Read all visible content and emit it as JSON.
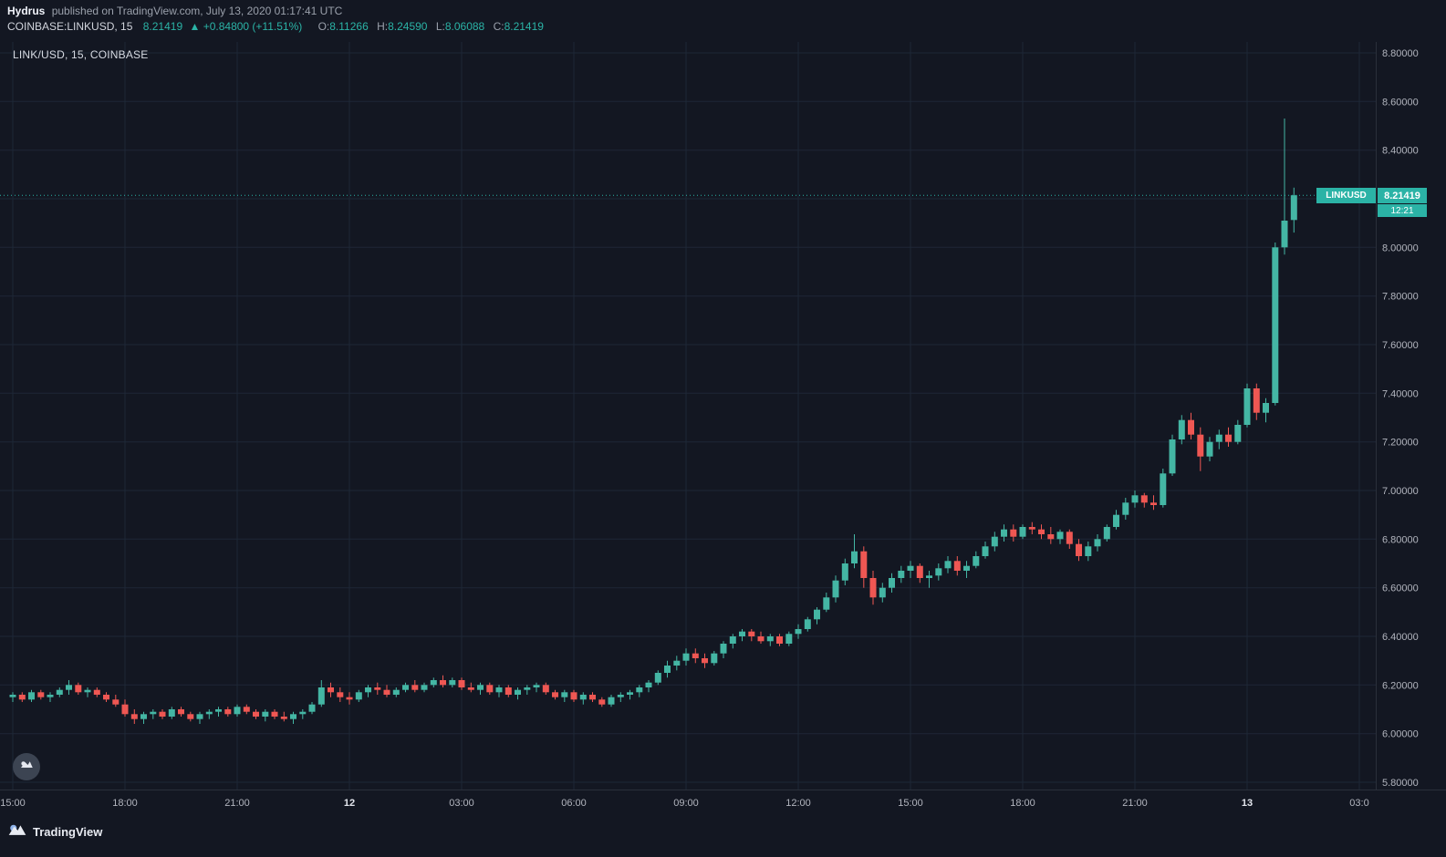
{
  "header": {
    "author": "Hydrus",
    "published_text": "published on TradingView.com, July 13, 2020 01:17:41 UTC",
    "symbol": "COINBASE:LINKUSD, 15",
    "last_price": "8.21419",
    "arrow": "▲",
    "change": "+0.84800 (+11.51%)",
    "ohlc": {
      "o_label": "O:",
      "o": "8.11266",
      "h_label": "H:",
      "h": "8.24590",
      "l_label": "L:",
      "l": "8.06088",
      "c_label": "C:",
      "c": "8.21419"
    }
  },
  "chart": {
    "legend": "LINK/USD, 15, COINBASE",
    "price_tag": {
      "symbol": "LINKUSD",
      "price": "8.21419",
      "countdown": "12:21"
    }
  },
  "footer": {
    "brand": "TradingView"
  },
  "colors": {
    "background": "#131722",
    "grid": "#1e2736",
    "axis_border": "#2a2f3a",
    "up": "#44b6a4",
    "down": "#ef5753",
    "accent": "#2bb3a6",
    "axis_text": "#b2b5be",
    "date_text": "#e3e6ed",
    "tag_text": "#ffffff"
  },
  "chart_data": {
    "type": "candlestick",
    "title": "LINK/USD, 15, COINBASE",
    "symbol": "LINKUSD",
    "exchange": "COINBASE",
    "interval_minutes": 15,
    "current_price": 8.21419,
    "price_axis": {
      "min": 5.77,
      "max": 8.845,
      "label_min": 5.8,
      "label_max": 8.8,
      "grid_step": 0.2,
      "hidden_label": 8.2,
      "decimals": 5
    },
    "time_labels": [
      {
        "index": 0,
        "label": "15:00",
        "date": false
      },
      {
        "index": 12,
        "label": "18:00",
        "date": false
      },
      {
        "index": 24,
        "label": "21:00",
        "date": false
      },
      {
        "index": 36,
        "label": "12",
        "date": true
      },
      {
        "index": 48,
        "label": "03:00",
        "date": false
      },
      {
        "index": 60,
        "label": "06:00",
        "date": false
      },
      {
        "index": 72,
        "label": "09:00",
        "date": false
      },
      {
        "index": 84,
        "label": "12:00",
        "date": false
      },
      {
        "index": 96,
        "label": "15:00",
        "date": false
      },
      {
        "index": 108,
        "label": "18:00",
        "date": false
      },
      {
        "index": 120,
        "label": "21:00",
        "date": false
      },
      {
        "index": 132,
        "label": "13",
        "date": true
      },
      {
        "index": 144,
        "label": "03:0",
        "date": false
      }
    ],
    "candles": [
      [
        6.15,
        6.17,
        6.13,
        6.16
      ],
      [
        6.16,
        6.17,
        6.13,
        6.14
      ],
      [
        6.14,
        6.18,
        6.13,
        6.17
      ],
      [
        6.17,
        6.18,
        6.14,
        6.15
      ],
      [
        6.15,
        6.17,
        6.13,
        6.16
      ],
      [
        6.16,
        6.19,
        6.15,
        6.18
      ],
      [
        6.18,
        6.22,
        6.16,
        6.2
      ],
      [
        6.2,
        6.21,
        6.16,
        6.17
      ],
      [
        6.17,
        6.19,
        6.15,
        6.18
      ],
      [
        6.18,
        6.19,
        6.15,
        6.16
      ],
      [
        6.16,
        6.17,
        6.13,
        6.14
      ],
      [
        6.14,
        6.16,
        6.11,
        6.12
      ],
      [
        6.12,
        6.14,
        6.07,
        6.08
      ],
      [
        6.08,
        6.1,
        6.04,
        6.06
      ],
      [
        6.06,
        6.09,
        6.04,
        6.08
      ],
      [
        6.08,
        6.1,
        6.06,
        6.09
      ],
      [
        6.09,
        6.1,
        6.06,
        6.07
      ],
      [
        6.07,
        6.11,
        6.06,
        6.1
      ],
      [
        6.1,
        6.11,
        6.07,
        6.08
      ],
      [
        6.08,
        6.09,
        6.05,
        6.06
      ],
      [
        6.06,
        6.09,
        6.04,
        6.08
      ],
      [
        6.08,
        6.1,
        6.06,
        6.09
      ],
      [
        6.09,
        6.11,
        6.07,
        6.1
      ],
      [
        6.1,
        6.11,
        6.07,
        6.08
      ],
      [
        6.08,
        6.12,
        6.07,
        6.11
      ],
      [
        6.11,
        6.12,
        6.08,
        6.09
      ],
      [
        6.09,
        6.1,
        6.06,
        6.07
      ],
      [
        6.07,
        6.1,
        6.05,
        6.09
      ],
      [
        6.09,
        6.1,
        6.06,
        6.07
      ],
      [
        6.07,
        6.09,
        6.05,
        6.06
      ],
      [
        6.06,
        6.09,
        6.04,
        6.08
      ],
      [
        6.08,
        6.1,
        6.06,
        6.09
      ],
      [
        6.09,
        6.13,
        6.08,
        6.12
      ],
      [
        6.12,
        6.22,
        6.11,
        6.19
      ],
      [
        6.19,
        6.21,
        6.15,
        6.17
      ],
      [
        6.17,
        6.19,
        6.13,
        6.15
      ],
      [
        6.15,
        6.17,
        6.12,
        6.14
      ],
      [
        6.14,
        6.18,
        6.13,
        6.17
      ],
      [
        6.17,
        6.2,
        6.15,
        6.19
      ],
      [
        6.19,
        6.21,
        6.16,
        6.18
      ],
      [
        6.18,
        6.2,
        6.15,
        6.16
      ],
      [
        6.16,
        6.19,
        6.15,
        6.18
      ],
      [
        6.18,
        6.21,
        6.17,
        6.2
      ],
      [
        6.2,
        6.22,
        6.17,
        6.18
      ],
      [
        6.18,
        6.21,
        6.17,
        6.2
      ],
      [
        6.2,
        6.23,
        6.19,
        6.22
      ],
      [
        6.22,
        6.24,
        6.19,
        6.2
      ],
      [
        6.2,
        6.23,
        6.19,
        6.22
      ],
      [
        6.22,
        6.23,
        6.18,
        6.19
      ],
      [
        6.19,
        6.21,
        6.17,
        6.18
      ],
      [
        6.18,
        6.21,
        6.16,
        6.2
      ],
      [
        6.2,
        6.21,
        6.16,
        6.17
      ],
      [
        6.17,
        6.2,
        6.15,
        6.19
      ],
      [
        6.19,
        6.2,
        6.15,
        6.16
      ],
      [
        6.16,
        6.19,
        6.14,
        6.18
      ],
      [
        6.18,
        6.2,
        6.16,
        6.19
      ],
      [
        6.19,
        6.21,
        6.17,
        6.2
      ],
      [
        6.2,
        6.21,
        6.16,
        6.17
      ],
      [
        6.17,
        6.18,
        6.14,
        6.15
      ],
      [
        6.15,
        6.18,
        6.13,
        6.17
      ],
      [
        6.17,
        6.18,
        6.13,
        6.14
      ],
      [
        6.14,
        6.17,
        6.12,
        6.16
      ],
      [
        6.16,
        6.17,
        6.13,
        6.14
      ],
      [
        6.14,
        6.15,
        6.11,
        6.12
      ],
      [
        6.12,
        6.16,
        6.11,
        6.15
      ],
      [
        6.15,
        6.17,
        6.13,
        6.16
      ],
      [
        6.16,
        6.18,
        6.14,
        6.17
      ],
      [
        6.17,
        6.2,
        6.15,
        6.19
      ],
      [
        6.19,
        6.22,
        6.17,
        6.21
      ],
      [
        6.21,
        6.26,
        6.2,
        6.25
      ],
      [
        6.25,
        6.3,
        6.23,
        6.28
      ],
      [
        6.28,
        6.32,
        6.26,
        6.3
      ],
      [
        6.3,
        6.35,
        6.28,
        6.33
      ],
      [
        6.33,
        6.35,
        6.29,
        6.31
      ],
      [
        6.31,
        6.33,
        6.27,
        6.29
      ],
      [
        6.29,
        6.34,
        6.28,
        6.33
      ],
      [
        6.33,
        6.38,
        6.31,
        6.37
      ],
      [
        6.37,
        6.41,
        6.35,
        6.4
      ],
      [
        6.4,
        6.43,
        6.38,
        6.42
      ],
      [
        6.42,
        6.43,
        6.38,
        6.4
      ],
      [
        6.4,
        6.42,
        6.37,
        6.38
      ],
      [
        6.38,
        6.41,
        6.36,
        6.4
      ],
      [
        6.4,
        6.41,
        6.36,
        6.37
      ],
      [
        6.37,
        6.42,
        6.36,
        6.41
      ],
      [
        6.41,
        6.45,
        6.39,
        6.43
      ],
      [
        6.43,
        6.48,
        6.42,
        6.47
      ],
      [
        6.47,
        6.52,
        6.45,
        6.51
      ],
      [
        6.51,
        6.58,
        6.5,
        6.56
      ],
      [
        6.56,
        6.65,
        6.54,
        6.63
      ],
      [
        6.63,
        6.72,
        6.61,
        6.7
      ],
      [
        6.7,
        6.82,
        6.68,
        6.75
      ],
      [
        6.75,
        6.77,
        6.6,
        6.64
      ],
      [
        6.64,
        6.67,
        6.53,
        6.56
      ],
      [
        6.56,
        6.62,
        6.54,
        6.6
      ],
      [
        6.6,
        6.66,
        6.58,
        6.64
      ],
      [
        6.64,
        6.69,
        6.62,
        6.67
      ],
      [
        6.67,
        6.71,
        6.64,
        6.69
      ],
      [
        6.69,
        6.7,
        6.62,
        6.64
      ],
      [
        6.64,
        6.67,
        6.6,
        6.65
      ],
      [
        6.65,
        6.7,
        6.63,
        6.68
      ],
      [
        6.68,
        6.73,
        6.66,
        6.71
      ],
      [
        6.71,
        6.73,
        6.65,
        6.67
      ],
      [
        6.67,
        6.71,
        6.64,
        6.69
      ],
      [
        6.69,
        6.75,
        6.68,
        6.73
      ],
      [
        6.73,
        6.79,
        6.72,
        6.77
      ],
      [
        6.77,
        6.83,
        6.75,
        6.81
      ],
      [
        6.81,
        6.86,
        6.79,
        6.84
      ],
      [
        6.84,
        6.86,
        6.79,
        6.81
      ],
      [
        6.81,
        6.86,
        6.8,
        6.85
      ],
      [
        6.85,
        6.87,
        6.82,
        6.84
      ],
      [
        6.84,
        6.86,
        6.8,
        6.82
      ],
      [
        6.82,
        6.85,
        6.78,
        6.8
      ],
      [
        6.8,
        6.84,
        6.78,
        6.83
      ],
      [
        6.83,
        6.84,
        6.76,
        6.78
      ],
      [
        6.78,
        6.8,
        6.71,
        6.73
      ],
      [
        6.73,
        6.79,
        6.71,
        6.77
      ],
      [
        6.77,
        6.82,
        6.75,
        6.8
      ],
      [
        6.8,
        6.86,
        6.79,
        6.85
      ],
      [
        6.85,
        6.92,
        6.84,
        6.9
      ],
      [
        6.9,
        6.97,
        6.88,
        6.95
      ],
      [
        6.95,
        7.0,
        6.93,
        6.98
      ],
      [
        6.98,
        6.99,
        6.93,
        6.95
      ],
      [
        6.95,
        6.98,
        6.92,
        6.94
      ],
      [
        6.94,
        7.09,
        6.93,
        7.07
      ],
      [
        7.07,
        7.23,
        7.06,
        7.21
      ],
      [
        7.21,
        7.31,
        7.19,
        7.29
      ],
      [
        7.29,
        7.32,
        7.21,
        7.23
      ],
      [
        7.23,
        7.26,
        7.08,
        7.14
      ],
      [
        7.14,
        7.22,
        7.12,
        7.2
      ],
      [
        7.2,
        7.25,
        7.17,
        7.23
      ],
      [
        7.23,
        7.26,
        7.18,
        7.2
      ],
      [
        7.2,
        7.29,
        7.19,
        7.27
      ],
      [
        7.27,
        7.44,
        7.26,
        7.42
      ],
      [
        7.42,
        7.44,
        7.29,
        7.32
      ],
      [
        7.32,
        7.38,
        7.28,
        7.36
      ],
      [
        7.36,
        8.02,
        7.35,
        8.0
      ],
      [
        8.0,
        8.53,
        7.97,
        8.11
      ],
      [
        8.11266,
        8.2459,
        8.06088,
        8.21419
      ]
    ]
  }
}
